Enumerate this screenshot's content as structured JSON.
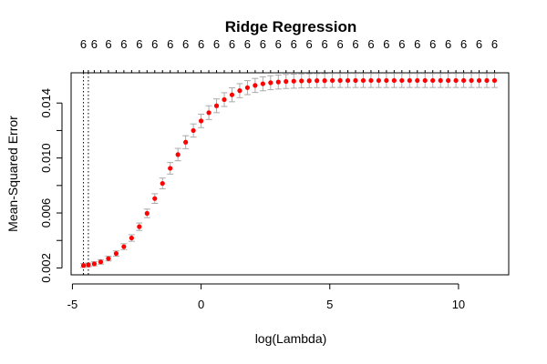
{
  "chart_data": {
    "type": "scatter",
    "title": "Ridge Regression",
    "xlabel": "log(Lambda)",
    "ylabel": "Mean-Squared Error",
    "xlim": [
      -5.05,
      11.95
    ],
    "ylim": [
      0.0015,
      0.0162
    ],
    "x_ticks": [
      -5,
      0,
      5,
      10
    ],
    "x_tick_labels": [
      "-5",
      "0",
      "5",
      "10"
    ],
    "y_ticks": [
      0.002,
      0.004,
      0.006,
      0.008,
      0.01,
      0.012,
      0.014
    ],
    "y_tick_labels": [
      "0.002",
      "0.006",
      "0.010",
      "0.014"
    ],
    "top_axis_label": "6",
    "vlines": [
      -4.57,
      -4.38
    ],
    "point_color": "#ff0000",
    "errorbar_color": "#aaaaaa",
    "points": [
      {
        "x": -4.57,
        "y": 0.00218,
        "se": 0.00014
      },
      {
        "x": -4.38,
        "y": 0.00222,
        "se": 0.00014
      },
      {
        "x": -4.15,
        "y": 0.0023,
        "se": 0.00015
      },
      {
        "x": -3.9,
        "y": 0.00244,
        "se": 0.00016
      },
      {
        "x": -3.6,
        "y": 0.00268,
        "se": 0.00017
      },
      {
        "x": -3.3,
        "y": 0.00305,
        "se": 0.00019
      },
      {
        "x": -3.0,
        "y": 0.00355,
        "se": 0.00021
      },
      {
        "x": -2.7,
        "y": 0.00418,
        "se": 0.00024
      },
      {
        "x": -2.4,
        "y": 0.005,
        "se": 0.00027
      },
      {
        "x": -2.1,
        "y": 0.00597,
        "se": 0.00031
      },
      {
        "x": -1.8,
        "y": 0.00705,
        "se": 0.00035
      },
      {
        "x": -1.5,
        "y": 0.00815,
        "se": 0.00039
      },
      {
        "x": -1.2,
        "y": 0.00925,
        "se": 0.00042
      },
      {
        "x": -0.9,
        "y": 0.01025,
        "se": 0.00045
      },
      {
        "x": -0.6,
        "y": 0.01115,
        "se": 0.00047
      },
      {
        "x": -0.3,
        "y": 0.012,
        "se": 0.00048
      },
      {
        "x": 0.0,
        "y": 0.0127,
        "se": 0.00049
      },
      {
        "x": 0.3,
        "y": 0.0133,
        "se": 0.0005
      },
      {
        "x": 0.6,
        "y": 0.0138,
        "se": 0.0005
      },
      {
        "x": 0.9,
        "y": 0.01425,
        "se": 0.0005
      },
      {
        "x": 1.2,
        "y": 0.0146,
        "se": 0.00051
      },
      {
        "x": 1.5,
        "y": 0.0149,
        "se": 0.00051
      },
      {
        "x": 1.8,
        "y": 0.01512,
        "se": 0.00051
      },
      {
        "x": 2.1,
        "y": 0.01528,
        "se": 0.00051
      },
      {
        "x": 2.4,
        "y": 0.0154,
        "se": 0.00051
      },
      {
        "x": 2.7,
        "y": 0.01548,
        "se": 0.00051
      },
      {
        "x": 3.0,
        "y": 0.01553,
        "se": 0.00051
      },
      {
        "x": 3.3,
        "y": 0.01557,
        "se": 0.00051
      },
      {
        "x": 3.6,
        "y": 0.01559,
        "se": 0.00051
      },
      {
        "x": 3.9,
        "y": 0.01561,
        "se": 0.00051
      },
      {
        "x": 4.2,
        "y": 0.01562,
        "se": 0.00051
      },
      {
        "x": 4.5,
        "y": 0.01563,
        "se": 0.00051
      },
      {
        "x": 4.8,
        "y": 0.01563,
        "se": 0.00051
      },
      {
        "x": 5.1,
        "y": 0.01564,
        "se": 0.00051
      },
      {
        "x": 5.4,
        "y": 0.01564,
        "se": 0.00051
      },
      {
        "x": 5.7,
        "y": 0.01564,
        "se": 0.00051
      },
      {
        "x": 6.0,
        "y": 0.01564,
        "se": 0.00051
      },
      {
        "x": 6.3,
        "y": 0.01564,
        "se": 0.00051
      },
      {
        "x": 6.6,
        "y": 0.01564,
        "se": 0.00051
      },
      {
        "x": 6.9,
        "y": 0.01564,
        "se": 0.00051
      },
      {
        "x": 7.2,
        "y": 0.01564,
        "se": 0.00051
      },
      {
        "x": 7.5,
        "y": 0.01564,
        "se": 0.00051
      },
      {
        "x": 7.8,
        "y": 0.01564,
        "se": 0.00051
      },
      {
        "x": 8.1,
        "y": 0.01564,
        "se": 0.00051
      },
      {
        "x": 8.4,
        "y": 0.01564,
        "se": 0.00051
      },
      {
        "x": 8.7,
        "y": 0.01564,
        "se": 0.00051
      },
      {
        "x": 9.0,
        "y": 0.01564,
        "se": 0.00051
      },
      {
        "x": 9.3,
        "y": 0.01564,
        "se": 0.00051
      },
      {
        "x": 9.6,
        "y": 0.01564,
        "se": 0.00051
      },
      {
        "x": 9.9,
        "y": 0.01564,
        "se": 0.00051
      },
      {
        "x": 10.2,
        "y": 0.01564,
        "se": 0.00051
      },
      {
        "x": 10.5,
        "y": 0.01564,
        "se": 0.00051
      },
      {
        "x": 10.8,
        "y": 0.01564,
        "se": 0.00051
      },
      {
        "x": 11.1,
        "y": 0.01564,
        "se": 0.00051
      },
      {
        "x": 11.4,
        "y": 0.01564,
        "se": 0.00051
      }
    ]
  }
}
